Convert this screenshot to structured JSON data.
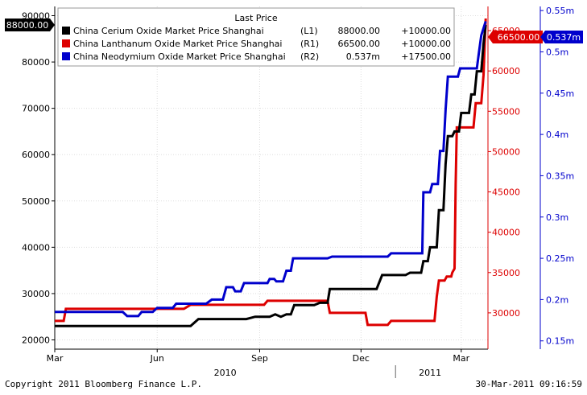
{
  "chart_data": {
    "type": "line",
    "legend_title": "Last Price",
    "legend_placement": "top-left",
    "grid": true,
    "x_range": [
      "2010-03-01",
      "2011-03-25"
    ],
    "x_ticks": [
      {
        "date": "2010-03-01",
        "label": "Mar"
      },
      {
        "date": "2010-06-01",
        "label": "Jun"
      },
      {
        "date": "2010-09-01",
        "label": "Sep"
      },
      {
        "date": "2010-12-01",
        "label": "Dec"
      },
      {
        "date": "2011-03-01",
        "label": "Mar"
      }
    ],
    "year_labels": [
      {
        "date": "2010-08-01",
        "label": "2010"
      },
      {
        "date": "2011-02-01",
        "label": "2011"
      }
    ],
    "year_divider": "2011-01-01",
    "axes": {
      "L1": {
        "color": "#000000",
        "range": [
          18000,
          92000
        ],
        "ticks": [
          20000,
          30000,
          40000,
          50000,
          60000,
          70000,
          80000,
          90000
        ],
        "tick_labels": [
          "20000",
          "30000",
          "40000",
          "50000",
          "60000",
          "70000",
          "80000",
          "90000"
        ],
        "last_label": "88000.00"
      },
      "R1": {
        "color": "#dd0000",
        "range": [
          25500,
          68000
        ],
        "ticks": [
          30000,
          35000,
          40000,
          45000,
          50000,
          55000,
          60000,
          65000
        ],
        "tick_labels": [
          "30000",
          "35000",
          "40000",
          "45000",
          "50000",
          "55000",
          "60000",
          "65000"
        ],
        "last_label": "66500.00"
      },
      "R2": {
        "color": "#0000cc",
        "range": [
          0.14,
          0.555
        ],
        "ticks": [
          0.15,
          0.2,
          0.25,
          0.3,
          0.35,
          0.4,
          0.45,
          0.5,
          0.55
        ],
        "tick_labels": [
          "0.15m",
          "0.2m",
          "0.25m",
          "0.3m",
          "0.35m",
          "0.4m",
          "0.45m",
          "0.5m",
          "0.55m"
        ],
        "last_label": "0.537m"
      }
    },
    "series": [
      {
        "name": "China Cerium Oxide Market Price Shanghai",
        "axis": "L1",
        "axis_tag": "(L1)",
        "last": "88000.00",
        "change": "+10000.00",
        "color": "#000000",
        "points": [
          [
            "2010-03-01",
            23000
          ],
          [
            "2010-05-25",
            23000
          ],
          [
            "2010-06-01",
            23000
          ],
          [
            "2010-07-01",
            23000
          ],
          [
            "2010-07-08",
            24500
          ],
          [
            "2010-08-20",
            24500
          ],
          [
            "2010-08-28",
            25000
          ],
          [
            "2010-09-10",
            25000
          ],
          [
            "2010-09-15",
            25500
          ],
          [
            "2010-09-20",
            25000
          ],
          [
            "2010-09-25",
            25500
          ],
          [
            "2010-09-29",
            25500
          ],
          [
            "2010-10-02",
            27500
          ],
          [
            "2010-10-20",
            27500
          ],
          [
            "2010-10-25",
            28000
          ],
          [
            "2010-11-01",
            28000
          ],
          [
            "2010-11-03",
            31000
          ],
          [
            "2010-11-25",
            31000
          ],
          [
            "2010-12-15",
            31000
          ],
          [
            "2010-12-20",
            34000
          ],
          [
            "2011-01-10",
            34000
          ],
          [
            "2011-01-14",
            34500
          ],
          [
            "2011-01-24",
            34500
          ],
          [
            "2011-01-26",
            37000
          ],
          [
            "2011-01-30",
            37000
          ],
          [
            "2011-02-01",
            40000
          ],
          [
            "2011-02-07",
            40000
          ],
          [
            "2011-02-09",
            48000
          ],
          [
            "2011-02-13",
            48000
          ],
          [
            "2011-02-15",
            58000
          ],
          [
            "2011-02-17",
            64000
          ],
          [
            "2011-02-21",
            64000
          ],
          [
            "2011-02-23",
            65000
          ],
          [
            "2011-02-27",
            65000
          ],
          [
            "2011-03-01",
            69000
          ],
          [
            "2011-03-08",
            69000
          ],
          [
            "2011-03-10",
            73000
          ],
          [
            "2011-03-13",
            73000
          ],
          [
            "2011-03-15",
            78000
          ],
          [
            "2011-03-19",
            78000
          ],
          [
            "2011-03-21",
            84000
          ],
          [
            "2011-03-23",
            88000
          ]
        ]
      },
      {
        "name": "China Lanthanum Oxide Market Price Shanghai",
        "axis": "R1",
        "axis_tag": "(R1)",
        "last": "66500.00",
        "change": "+10000.00",
        "color": "#dd0000",
        "points": [
          [
            "2010-03-01",
            29000
          ],
          [
            "2010-03-09",
            29000
          ],
          [
            "2010-03-11",
            30500
          ],
          [
            "2010-06-25",
            30500
          ],
          [
            "2010-07-01",
            31000
          ],
          [
            "2010-09-05",
            31000
          ],
          [
            "2010-09-08",
            31500
          ],
          [
            "2010-11-01",
            31500
          ],
          [
            "2010-11-03",
            30000
          ],
          [
            "2010-12-05",
            30000
          ],
          [
            "2010-12-07",
            28500
          ],
          [
            "2010-12-25",
            28500
          ],
          [
            "2010-12-28",
            29000
          ],
          [
            "2011-02-05",
            29000
          ],
          [
            "2011-02-07",
            32000
          ],
          [
            "2011-02-09",
            34000
          ],
          [
            "2011-02-14",
            34000
          ],
          [
            "2011-02-16",
            34500
          ],
          [
            "2011-02-20",
            34500
          ],
          [
            "2011-02-21",
            35000
          ],
          [
            "2011-02-23",
            35500
          ],
          [
            "2011-02-24",
            46000
          ],
          [
            "2011-02-25",
            53000
          ],
          [
            "2011-03-12",
            53000
          ],
          [
            "2011-03-14",
            56000
          ],
          [
            "2011-03-19",
            56000
          ],
          [
            "2011-03-21",
            59500
          ],
          [
            "2011-03-23",
            66500
          ]
        ]
      },
      {
        "name": "China Neodymium Oxide Market Price Shanghai",
        "axis": "R2",
        "axis_tag": "(R2)",
        "last": "0.537m",
        "change": "+17500.00",
        "color": "#0000cc",
        "points": [
          [
            "2010-03-01",
            0.185
          ],
          [
            "2010-05-01",
            0.185
          ],
          [
            "2010-05-05",
            0.18
          ],
          [
            "2010-05-15",
            0.18
          ],
          [
            "2010-05-18",
            0.185
          ],
          [
            "2010-05-28",
            0.185
          ],
          [
            "2010-06-01",
            0.19
          ],
          [
            "2010-06-15",
            0.19
          ],
          [
            "2010-06-18",
            0.195
          ],
          [
            "2010-07-15",
            0.195
          ],
          [
            "2010-07-20",
            0.2
          ],
          [
            "2010-07-30",
            0.2
          ],
          [
            "2010-08-02",
            0.215
          ],
          [
            "2010-08-08",
            0.215
          ],
          [
            "2010-08-10",
            0.21
          ],
          [
            "2010-08-15",
            0.21
          ],
          [
            "2010-08-18",
            0.22
          ],
          [
            "2010-09-08",
            0.22
          ],
          [
            "2010-09-10",
            0.225
          ],
          [
            "2010-09-14",
            0.225
          ],
          [
            "2010-09-16",
            0.222
          ],
          [
            "2010-09-22",
            0.222
          ],
          [
            "2010-09-25",
            0.235
          ],
          [
            "2010-09-29",
            0.235
          ],
          [
            "2010-10-01",
            0.25
          ],
          [
            "2010-11-01",
            0.25
          ],
          [
            "2010-11-05",
            0.252
          ],
          [
            "2010-12-25",
            0.252
          ],
          [
            "2010-12-28",
            0.256
          ],
          [
            "2011-01-15",
            0.256
          ],
          [
            "2011-01-25",
            0.256
          ],
          [
            "2011-01-26",
            0.33
          ],
          [
            "2011-02-01",
            0.33
          ],
          [
            "2011-02-03",
            0.34
          ],
          [
            "2011-02-08",
            0.34
          ],
          [
            "2011-02-10",
            0.38
          ],
          [
            "2011-02-13",
            0.38
          ],
          [
            "2011-02-15",
            0.43
          ],
          [
            "2011-02-17",
            0.47
          ],
          [
            "2011-02-26",
            0.47
          ],
          [
            "2011-02-28",
            0.48
          ],
          [
            "2011-03-15",
            0.48
          ],
          [
            "2011-03-17",
            0.5
          ],
          [
            "2011-03-19",
            0.52
          ],
          [
            "2011-03-23",
            0.537
          ]
        ]
      }
    ]
  },
  "footer": {
    "copyright": "Copyright 2011 Bloomberg Finance L.P.",
    "timestamp": "30-Mar-2011 09:16:59"
  }
}
